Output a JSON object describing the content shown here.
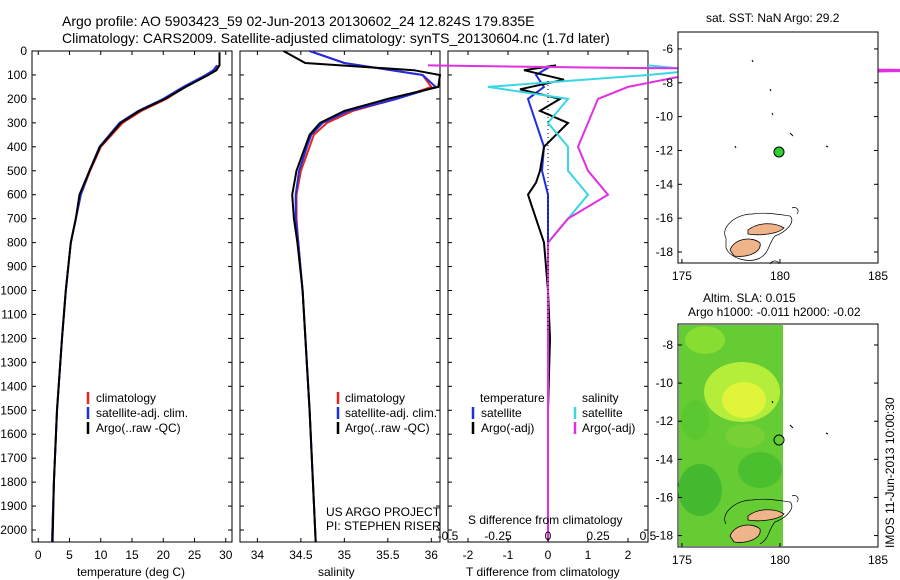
{
  "header": {
    "line1": "Argo profile: AO 5903423_59 02-Jun-2013 20130602_24 12.824S 179.835E",
    "line2": "Climatology: CARS2009. Satellite-adjusted climatology: synTS_20130604.nc (1.7d later)"
  },
  "depth_ticks": [
    "0",
    "100",
    "200",
    "300",
    "400",
    "500",
    "600",
    "700",
    "800",
    "900",
    "1000",
    "1100",
    "1200",
    "1300",
    "1400",
    "1500",
    "1600",
    "1700",
    "1800",
    "1900",
    "2000"
  ],
  "colors": {
    "climatology": "#e8251e",
    "satellite": "#1f2fe0",
    "argo": "#000000",
    "sat_salinity": "#3ad6e6",
    "argo_adj_salinity": "#e030e0"
  },
  "chart_data": [
    {
      "type": "line",
      "id": "temperature",
      "xlabel": "temperature (deg C)",
      "xlim": [
        -1,
        31
      ],
      "ylim": [
        2050,
        0
      ],
      "xticks": [
        "0",
        "5",
        "10",
        "15",
        "20",
        "25",
        "30"
      ],
      "legend": [
        "climatology",
        "satellite-adj. clim.",
        "Argo(..raw -QC)"
      ],
      "series": [
        {
          "name": "climatology",
          "depth": [
            60,
            80,
            100,
            150,
            200,
            250,
            300,
            400,
            500,
            600,
            700,
            800,
            1000,
            1200,
            1500,
            1800,
            2050
          ],
          "values": [
            28.8,
            28.2,
            27,
            23.5,
            20.5,
            16.5,
            13.5,
            10,
            8.3,
            6.8,
            6,
            5.2,
            4.4,
            3.8,
            3,
            2.5,
            2.2
          ]
        },
        {
          "name": "satellite",
          "depth": [
            60,
            80,
            100,
            150,
            200,
            250,
            300,
            400,
            500,
            600,
            700,
            800,
            1000,
            1200,
            1500,
            1800,
            2050
          ],
          "values": [
            28.6,
            28,
            26.8,
            23.2,
            20,
            16,
            13,
            9.8,
            8.2,
            6.8,
            6,
            5.2,
            4.4,
            3.8,
            3,
            2.5,
            2.2
          ]
        },
        {
          "name": "argo",
          "depth": [
            5,
            60,
            80,
            100,
            150,
            200,
            250,
            300,
            400,
            500,
            600,
            700,
            800,
            1000,
            1200,
            1500,
            1800,
            2050
          ],
          "values": [
            29,
            29,
            28.5,
            27.2,
            23.6,
            20.3,
            16.2,
            13.2,
            9.9,
            8.2,
            6.6,
            6,
            5.2,
            4.4,
            3.8,
            3,
            2.5,
            2.3
          ]
        }
      ]
    },
    {
      "type": "line",
      "id": "salinity",
      "xlabel": "salinity",
      "xlim": [
        33.8,
        36.1
      ],
      "ylim": [
        2050,
        0
      ],
      "xticks": [
        "34",
        "34.5",
        "35",
        "35.5",
        "36"
      ],
      "legend": [
        "climatology",
        "satellite-adj. clim.",
        "Argo(..raw -QC)"
      ],
      "series": [
        {
          "name": "climatology",
          "depth": [
            0,
            50,
            100,
            150,
            200,
            250,
            300,
            350,
            400,
            500,
            600,
            700,
            800,
            1000,
            1500,
            2050
          ],
          "values": [
            34.6,
            35.0,
            35.9,
            36.0,
            35.6,
            35.1,
            34.8,
            34.65,
            34.6,
            34.5,
            34.45,
            34.45,
            34.47,
            34.52,
            34.6,
            34.67
          ]
        },
        {
          "name": "satellite",
          "depth": [
            0,
            50,
            100,
            150,
            200,
            250,
            300,
            350,
            400,
            500,
            600,
            700,
            800,
            1000,
            1500,
            2050
          ],
          "values": [
            34.6,
            35.0,
            35.9,
            36.05,
            35.6,
            35.05,
            34.75,
            34.62,
            34.57,
            34.48,
            34.44,
            34.44,
            34.47,
            34.52,
            34.6,
            34.67
          ]
        },
        {
          "name": "argo",
          "depth": [
            0,
            50,
            80,
            100,
            150,
            200,
            250,
            300,
            350,
            400,
            500,
            600,
            700,
            800,
            1000,
            1500,
            2050
          ],
          "values": [
            34.3,
            34.55,
            35.8,
            36.1,
            36.08,
            35.5,
            35.0,
            34.72,
            34.6,
            34.55,
            34.45,
            34.4,
            34.42,
            34.46,
            34.52,
            34.6,
            34.67
          ]
        }
      ]
    },
    {
      "type": "line",
      "id": "differences",
      "xlabel": "T difference from climatology",
      "xlabel_top": "S difference from climatology",
      "xlim": [
        -2.5,
        2.5
      ],
      "ylim": [
        2050,
        0
      ],
      "xticks": [
        "-2",
        "-1",
        "0",
        "1",
        "2"
      ],
      "sticks": [
        "-0.5",
        "-0.25",
        "0",
        "0.25",
        "0.5"
      ],
      "legend_temperature_title": "temperature",
      "legend_salinity_title": "salinity",
      "legend_temperature": [
        "satellite",
        "Argo(-adj)"
      ],
      "legend_salinity": [
        "satellite",
        "Argo(-adj)"
      ],
      "series": [
        {
          "name": "temperature satellite",
          "depth": [
            60,
            100,
            150,
            200,
            300,
            400,
            500,
            600,
            700,
            800,
            1000,
            1500,
            2050
          ],
          "values": [
            0.1,
            -0.3,
            -0.1,
            -0.5,
            -0.3,
            -0.1,
            -0.15,
            0,
            0,
            0,
            0,
            0,
            0
          ]
        },
        {
          "name": "temperature Argo(-adj)",
          "depth": [
            60,
            80,
            120,
            160,
            200,
            250,
            300,
            400,
            500,
            550,
            600,
            650,
            700,
            800,
            1000,
            1200,
            1500,
            2050
          ],
          "values": [
            0.2,
            -0.6,
            0.4,
            -0.7,
            0.3,
            -0.2,
            0.5,
            -0.1,
            -0.2,
            -0.3,
            -0.5,
            -0.4,
            -0.3,
            -0.1,
            0,
            0.05,
            0,
            0
          ]
        },
        {
          "name": "salinity satellite",
          "depth": [
            60,
            80,
            100,
            150,
            200,
            300,
            400,
            500,
            600,
            700,
            800,
            1000,
            1500,
            2050
          ],
          "values": [
            0.5,
            0.75,
            0.5,
            -0.3,
            0.1,
            0,
            0.1,
            0.1,
            0.2,
            0.1,
            0,
            0,
            0,
            0
          ]
        },
        {
          "name": "salinity Argo(-adj)",
          "depth": [
            60,
            70,
            80,
            100,
            150,
            200,
            300,
            400,
            500,
            600,
            700,
            800,
            1000,
            1500,
            2050
          ],
          "values": [
            -0.6,
            0.3,
            2.0,
            0.7,
            0.4,
            0.25,
            0.2,
            0.15,
            0.2,
            0.3,
            0.1,
            0,
            0,
            0,
            0
          ]
        }
      ]
    }
  ],
  "credits": {
    "line1": "US ARGO PROJECT",
    "line2": "PI: STEPHEN RISER"
  },
  "map_top": {
    "title": "sat. SST: NaN Argo: 29.2",
    "lon_ticks": [
      "175",
      "180",
      "185"
    ],
    "lat_ticks": [
      "-6",
      "-8",
      "-10",
      "-12",
      "-14",
      "-16",
      "-18"
    ],
    "float_lon": 179.835,
    "float_lat": -12.824
  },
  "map_bottom": {
    "title1": "Altim. SLA: 0.015",
    "title2": "Argo h1000: -0.011 h2000: -0.02",
    "lon_ticks": [
      "175",
      "180",
      "185"
    ],
    "lat_ticks": [
      "-8",
      "-10",
      "-12",
      "-14",
      "-16",
      "-18"
    ],
    "float_lon": 179.835,
    "float_lat": -12.824
  },
  "stamp": "IMOS 11-Jun-2013 10:00:30"
}
